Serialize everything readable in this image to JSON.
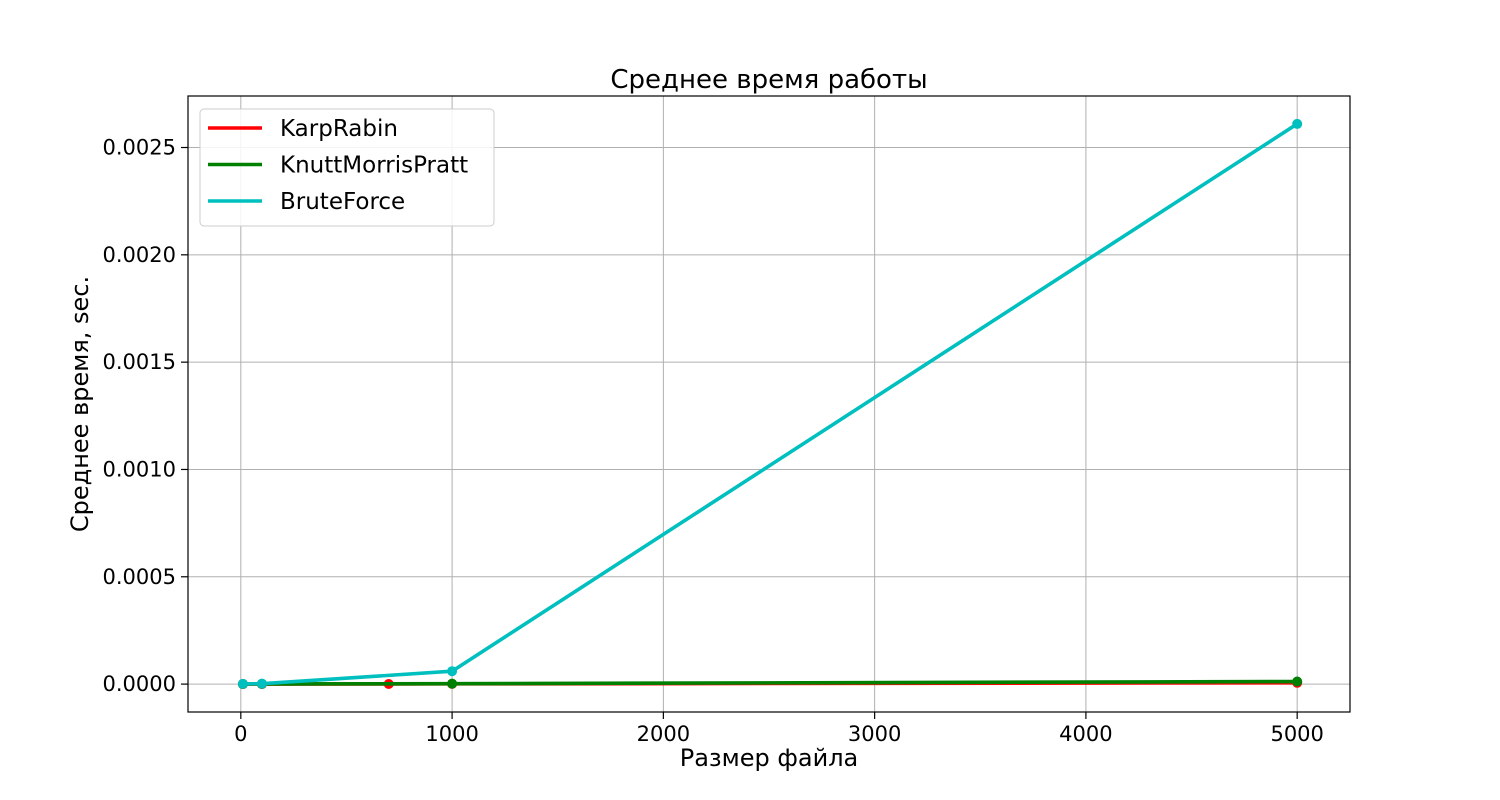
{
  "chart_data": {
    "type": "line",
    "title": "Среднее время работы",
    "xlabel": "Размер файла",
    "ylabel": "Среднее время, sec.",
    "xlim": [
      -250,
      5250
    ],
    "ylim": [
      -0.00013,
      0.00274
    ],
    "xticks": [
      0,
      1000,
      2000,
      3000,
      4000,
      5000
    ],
    "xtick_labels": [
      "0",
      "1000",
      "2000",
      "3000",
      "4000",
      "5000"
    ],
    "yticks": [
      0,
      0.0005,
      0.001,
      0.0015,
      0.002,
      0.0025
    ],
    "ytick_labels": [
      "0.0000",
      "0.0005",
      "0.0010",
      "0.0015",
      "0.0020",
      "0.0025"
    ],
    "grid": true,
    "legend_position": "top-left",
    "series": [
      {
        "name": "KarpRabin",
        "color": "#ff0000",
        "x": [
          10,
          100,
          700,
          1000,
          5000
        ],
        "y": [
          1e-07,
          2e-07,
          5e-07,
          1e-06,
          6e-06
        ]
      },
      {
        "name": "KnuttMorrisPratt",
        "color": "#008000",
        "x": [
          10,
          100,
          1000,
          5000
        ],
        "y": [
          3e-07,
          8e-07,
          2e-06,
          1.2e-05
        ]
      },
      {
        "name": "BruteForce",
        "color": "#00bfbf",
        "x": [
          10,
          100,
          1000,
          5000
        ],
        "y": [
          1e-06,
          2e-06,
          6e-05,
          0.00261
        ]
      }
    ]
  }
}
